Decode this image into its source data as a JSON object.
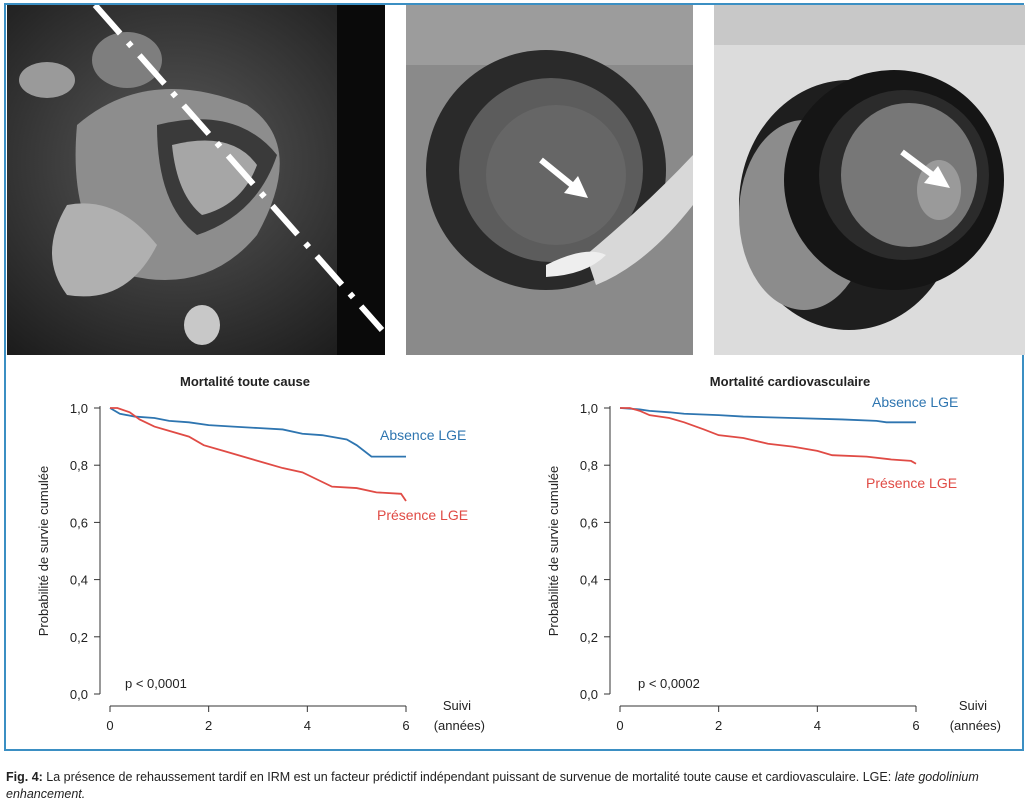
{
  "figure": {
    "caption_label": "Fig. 4:",
    "caption_text": " La présence de rehaussement tardif en IRM est un facteur prédictif indépendant puissant de survenue de mortalité toute cause et cardiovasculaire. LGE: ",
    "caption_italic": "late godolinium enhancement."
  },
  "images": [
    {
      "name": "mri-four-chamber",
      "annotation": "dash-dot line"
    },
    {
      "name": "mri-short-axis-1",
      "annotation": "arrow"
    },
    {
      "name": "mri-short-axis-2",
      "annotation": "arrow"
    }
  ],
  "colors": {
    "absence": "#2e75b0",
    "presence": "#e04b45",
    "frame": "#3b8fc3"
  },
  "chart_data": [
    {
      "type": "line",
      "title": "Mortalité toute cause",
      "ylabel": "Probabilité de survie cumulée",
      "xlabel": "Suivi",
      "xlabel_unit": "(années)",
      "xlim": [
        0,
        6
      ],
      "ylim": [
        0,
        1
      ],
      "x_ticks": [
        0,
        2,
        4,
        6
      ],
      "y_ticks": [
        "1,0",
        "0,8",
        "0,6",
        "0,4",
        "0,2",
        "0,0"
      ],
      "pvalue": "p < 0,0001",
      "series": [
        {
          "name": "Absence LGE",
          "color": "#2e75b0",
          "points": [
            [
              0,
              1.0
            ],
            [
              0.2,
              0.98
            ],
            [
              0.5,
              0.97
            ],
            [
              0.9,
              0.965
            ],
            [
              1.2,
              0.955
            ],
            [
              1.6,
              0.95
            ],
            [
              2,
              0.94
            ],
            [
              2.5,
              0.935
            ],
            [
              3,
              0.93
            ],
            [
              3.5,
              0.925
            ],
            [
              3.9,
              0.91
            ],
            [
              4.3,
              0.905
            ],
            [
              4.8,
              0.89
            ],
            [
              5.0,
              0.87
            ],
            [
              5.3,
              0.83
            ],
            [
              6,
              0.83
            ]
          ]
        },
        {
          "name": "Présence LGE",
          "color": "#e04b45",
          "points": [
            [
              0,
              1.0
            ],
            [
              0.15,
              1.0
            ],
            [
              0.4,
              0.985
            ],
            [
              0.6,
              0.96
            ],
            [
              0.9,
              0.935
            ],
            [
              1.2,
              0.92
            ],
            [
              1.6,
              0.9
            ],
            [
              1.9,
              0.87
            ],
            [
              2.3,
              0.85
            ],
            [
              2.7,
              0.83
            ],
            [
              3.1,
              0.81
            ],
            [
              3.5,
              0.79
            ],
            [
              3.9,
              0.775
            ],
            [
              4.2,
              0.75
            ],
            [
              4.5,
              0.725
            ],
            [
              5.0,
              0.72
            ],
            [
              5.4,
              0.705
            ],
            [
              5.9,
              0.7
            ],
            [
              6,
              0.675
            ]
          ]
        }
      ]
    },
    {
      "type": "line",
      "title": "Mortalité cardiovasculaire",
      "ylabel": "Probabilité de survie cumulée",
      "xlabel": "Suivi",
      "xlabel_unit": "(années)",
      "xlim": [
        0,
        6
      ],
      "ylim": [
        0,
        1
      ],
      "x_ticks": [
        0,
        2,
        4,
        6
      ],
      "y_ticks": [
        "1,0",
        "0,8",
        "0,6",
        "0,4",
        "0,2",
        "0,0"
      ],
      "pvalue": "p < 0,0002",
      "series": [
        {
          "name": "Absence LGE",
          "color": "#2e75b0",
          "points": [
            [
              0,
              1.0
            ],
            [
              0.4,
              0.995
            ],
            [
              0.6,
              0.99
            ],
            [
              1.0,
              0.985
            ],
            [
              1.3,
              0.98
            ],
            [
              2.0,
              0.975
            ],
            [
              2.5,
              0.97
            ],
            [
              3.5,
              0.965
            ],
            [
              4.5,
              0.96
            ],
            [
              5.2,
              0.955
            ],
            [
              5.4,
              0.95
            ],
            [
              6,
              0.95
            ]
          ]
        },
        {
          "name": "Présence LGE",
          "color": "#e04b45",
          "points": [
            [
              0,
              1.0
            ],
            [
              0.2,
              1.0
            ],
            [
              0.4,
              0.99
            ],
            [
              0.6,
              0.975
            ],
            [
              1.0,
              0.965
            ],
            [
              1.3,
              0.95
            ],
            [
              1.7,
              0.925
            ],
            [
              2.0,
              0.905
            ],
            [
              2.5,
              0.895
            ],
            [
              3.0,
              0.875
            ],
            [
              3.5,
              0.865
            ],
            [
              4.0,
              0.85
            ],
            [
              4.3,
              0.835
            ],
            [
              5.0,
              0.83
            ],
            [
              5.5,
              0.82
            ],
            [
              5.9,
              0.815
            ],
            [
              6,
              0.805
            ]
          ]
        }
      ]
    }
  ]
}
